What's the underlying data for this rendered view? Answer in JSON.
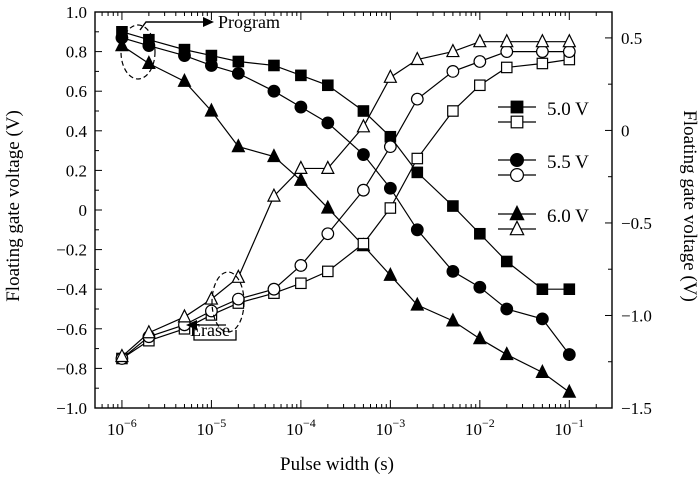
{
  "chart_data": {
    "type": "line",
    "xlabel": "Pulse width (s)",
    "ylabel_left": "Floating gate voltage (V)",
    "ylabel_right": "Floating gate voltage (V)",
    "x_scale": "log",
    "xlim": [
      5e-07,
      0.3
    ],
    "ylim_left": [
      -1.0,
      1.0
    ],
    "ylim_right": [
      -1.5,
      0.64
    ],
    "x": [
      1e-06,
      2e-06,
      5e-06,
      1e-05,
      2e-05,
      5e-05,
      0.0001,
      0.0002,
      0.0005,
      0.001,
      0.002,
      0.005,
      0.01,
      0.02,
      0.05,
      0.1
    ],
    "x_tick_values": [
      1e-06,
      1e-05,
      0.0001,
      0.001,
      0.01,
      0.1
    ],
    "x_tick_labels": [
      {
        "base": "10",
        "exp": "−6"
      },
      {
        "base": "10",
        "exp": "−5"
      },
      {
        "base": "10",
        "exp": "−4"
      },
      {
        "base": "10",
        "exp": "−3"
      },
      {
        "base": "10",
        "exp": "−2"
      },
      {
        "base": "10",
        "exp": "−1"
      }
    ],
    "y_left_ticks": [
      1.0,
      0.8,
      0.6,
      0.4,
      0.2,
      0,
      -0.2,
      -0.4,
      -0.6,
      -0.8,
      -1.0
    ],
    "y_left_tick_labels": [
      "1.0",
      "0.8",
      "0.6",
      "0.4",
      "0.2",
      "0",
      "−0.2",
      "−0.4",
      "−0.6",
      "−0.8",
      "−1.0"
    ],
    "y_right_ticks": [
      0.5,
      0,
      -0.5,
      -1.0,
      -1.5
    ],
    "y_right_tick_labels": [
      "0.5",
      "0",
      "−0.5",
      "−1.0",
      "−1.5"
    ],
    "series": [
      {
        "name": "5.0 V",
        "mode": "program",
        "marker": "square",
        "fill": "filled",
        "values": [
          0.9,
          0.86,
          0.81,
          0.78,
          0.75,
          0.73,
          0.68,
          0.63,
          0.5,
          0.37,
          0.19,
          0.02,
          -0.12,
          -0.26,
          -0.4,
          -0.4
        ]
      },
      {
        "name": "5.5 V",
        "mode": "program",
        "marker": "circle",
        "fill": "filled",
        "values": [
          0.87,
          0.83,
          0.78,
          0.73,
          0.69,
          0.6,
          0.52,
          0.44,
          0.28,
          0.11,
          -0.1,
          -0.31,
          -0.39,
          -0.5,
          -0.55,
          -0.73
        ]
      },
      {
        "name": "6.0 V",
        "mode": "program",
        "marker": "triangle",
        "fill": "filled",
        "values": [
          0.83,
          0.74,
          0.65,
          0.5,
          0.32,
          0.27,
          0.15,
          0.01,
          -0.18,
          -0.33,
          -0.48,
          -0.56,
          -0.65,
          -0.73,
          -0.82,
          -0.92
        ]
      },
      {
        "name": "5.0 V",
        "mode": "erase",
        "marker": "square",
        "fill": "open",
        "values": [
          -0.75,
          -0.66,
          -0.6,
          -0.53,
          -0.47,
          -0.42,
          -0.37,
          -0.31,
          -0.17,
          0.01,
          0.26,
          0.5,
          0.63,
          0.72,
          0.74,
          0.76
        ]
      },
      {
        "name": "5.5 V",
        "mode": "erase",
        "marker": "circle",
        "fill": "open",
        "values": [
          -0.75,
          -0.64,
          -0.58,
          -0.51,
          -0.45,
          -0.4,
          -0.28,
          -0.12,
          0.1,
          0.32,
          0.56,
          0.7,
          0.75,
          0.8,
          0.8,
          0.8
        ]
      },
      {
        "name": "6.0 V",
        "mode": "erase",
        "marker": "triangle",
        "fill": "open",
        "values": [
          -0.74,
          -0.62,
          -0.54,
          -0.45,
          -0.34,
          0.07,
          0.21,
          0.21,
          0.42,
          0.67,
          0.76,
          0.8,
          0.85,
          0.85,
          0.85,
          0.85
        ]
      }
    ],
    "annotations": [
      {
        "text": "Program"
      },
      {
        "text": "Erase"
      }
    ],
    "legend": {
      "position": "right",
      "entries": [
        "5.0 V",
        "5.5 V",
        "6.0 V"
      ]
    }
  }
}
